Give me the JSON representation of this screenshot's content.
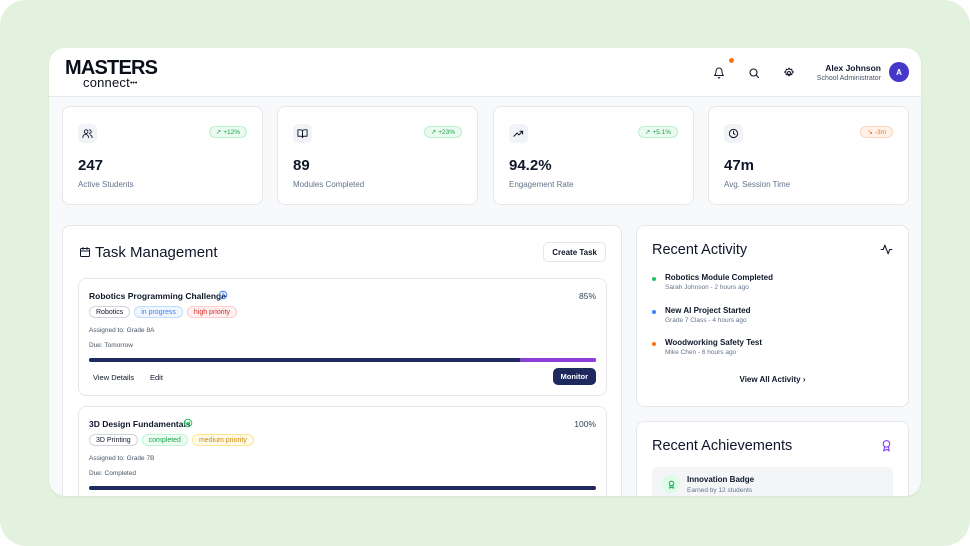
{
  "brand": {
    "logo_top": "MASTERS",
    "logo_bottom": "connect",
    "logo_dots": "•••"
  },
  "header": {
    "icons": [
      "bell-icon",
      "search-icon",
      "gear-icon"
    ],
    "user_name": "Alex Johnson",
    "user_role": "School Administrator",
    "avatar_initial": "A"
  },
  "stats": [
    {
      "icon": "users-icon",
      "trend": "+12%",
      "trend_color": "green",
      "value": "247",
      "label": "Active Students"
    },
    {
      "icon": "book-open-icon",
      "trend": "+23%",
      "trend_color": "green",
      "value": "89",
      "label": "Modules Completed"
    },
    {
      "icon": "trending-up-icon",
      "trend": "+5.1%",
      "trend_color": "green",
      "value": "94.2%",
      "label": "Engagement Rate"
    },
    {
      "icon": "clock-icon",
      "trend": "-3m",
      "trend_color": "orange",
      "value": "47m",
      "label": "Avg. Session Time"
    }
  ],
  "tasks": {
    "title": "Task Management",
    "create_label": "Create Task",
    "items": [
      {
        "title": "Robotics Programming Challenge",
        "status_icon": "clock-icon",
        "percent": "85%",
        "progress": 0.85,
        "tags": [
          "Robotics",
          "in progress",
          "high priority"
        ],
        "assigned": "Assigned to: Grade 8A",
        "due": "Due: Tomorrow",
        "view_label": "View Details",
        "edit_label": "Edit",
        "monitor_label": "Monitor"
      },
      {
        "title": "3D Design Fundamentals",
        "status_icon": "check-circle-icon",
        "percent": "100%",
        "progress": 1.0,
        "tags": [
          "3D Printing",
          "completed",
          "medium priority"
        ],
        "assigned": "Assigned to: Grade 7B",
        "due": "Due: Completed"
      }
    ]
  },
  "activity": {
    "title": "Recent Activity",
    "items": [
      {
        "title": "Robotics Module Completed",
        "sub": "Sarah Johnson - 2 hours ago",
        "color": "#22c55e"
      },
      {
        "title": "New AI Project Started",
        "sub": "Grade 7 Class - 4 hours ago",
        "color": "#3b82f6"
      },
      {
        "title": "Woodworking Safety Test",
        "sub": "Mike Chen - 6 hours ago",
        "color": "#f97316"
      }
    ],
    "view_all": "View All Activity"
  },
  "achievements": {
    "title": "Recent Achievements",
    "items": [
      {
        "title": "Innovation Badge",
        "sub": "Earned by 12 students"
      }
    ]
  },
  "colors": {
    "accent": "#1e2a5e",
    "progress_rest": "#8b3fd9",
    "avatar": "#4338ca",
    "page_bg": "#e3f2df"
  }
}
